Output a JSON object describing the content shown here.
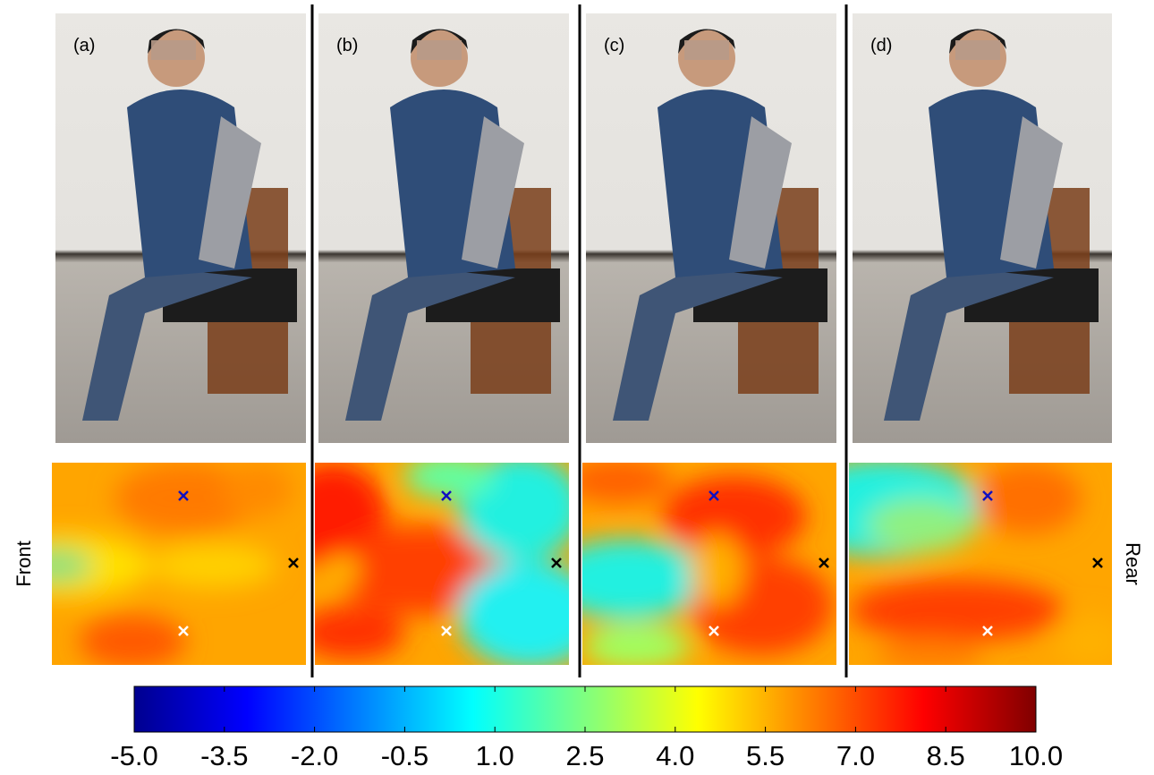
{
  "panels": [
    {
      "label": "(a)"
    },
    {
      "label": "(b)"
    },
    {
      "label": "(c)"
    },
    {
      "label": "(d)"
    }
  ],
  "side_labels": {
    "left": "Front",
    "right": "Rear"
  },
  "colorbar": {
    "range": [
      -5,
      10
    ],
    "ticks": [
      {
        "value": -5,
        "label": "-5.0"
      },
      {
        "value": -3.5,
        "label": "-3.5"
      },
      {
        "value": -2,
        "label": "-2.0"
      },
      {
        "value": -0.5,
        "label": "-0.5"
      },
      {
        "value": 1,
        "label": "1.0"
      },
      {
        "value": 2.5,
        "label": "2.5"
      },
      {
        "value": 4,
        "label": "4.0"
      },
      {
        "value": 5.5,
        "label": "5.5"
      },
      {
        "value": 7,
        "label": "7.0"
      },
      {
        "value": 8.5,
        "label": "8.5"
      },
      {
        "value": 10,
        "label": "10.0"
      }
    ]
  }
}
